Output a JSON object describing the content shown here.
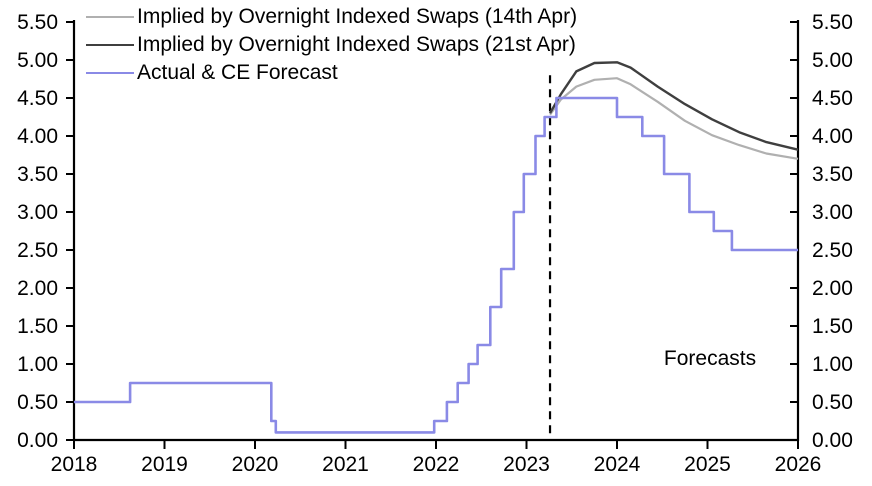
{
  "legend": {
    "items": [
      {
        "label": "Implied by Overnight Indexed Swaps (14th Apr)",
        "color": "#b0b0b0"
      },
      {
        "label": "Implied by Overnight Indexed Swaps (21st Apr)",
        "color": "#3f3f3f"
      },
      {
        "label": "Actual & CE Forecast",
        "color": "#8a8ae6"
      }
    ]
  },
  "annotations": {
    "forecasts_label": "Forecasts"
  },
  "chart_data": {
    "type": "line",
    "title": "",
    "xlabel": "",
    "ylabel": "",
    "xlim": [
      2018,
      2026
    ],
    "ylim": [
      0.0,
      5.5
    ],
    "grid": false,
    "legend_position": "top-left",
    "axis_color": "#000000",
    "x_ticks": [
      2018,
      2019,
      2020,
      2021,
      2022,
      2023,
      2024,
      2025,
      2026
    ],
    "x_tick_labels": [
      "2018",
      "2019",
      "2020",
      "2021",
      "2022",
      "2023",
      "2024",
      "2025",
      "2026"
    ],
    "y_ticks": [
      0.0,
      0.5,
      1.0,
      1.5,
      2.0,
      2.5,
      3.0,
      3.5,
      4.0,
      4.5,
      5.0,
      5.5
    ],
    "y_tick_labels": [
      "0.00",
      "0.50",
      "1.00",
      "1.50",
      "2.00",
      "2.50",
      "3.00",
      "3.50",
      "4.00",
      "4.50",
      "5.00",
      "5.50"
    ],
    "y_axis_sides": [
      "left",
      "right"
    ],
    "forecast_divider": {
      "style": "dashed-vertical",
      "x": 2023.26,
      "y_top": 4.8,
      "y_bottom": 0.0
    },
    "series": [
      {
        "name": "Implied by Overnight Indexed Swaps (14th Apr)",
        "color": "#b0b0b0",
        "width": 2.2,
        "mode": "line",
        "points": [
          [
            2023.26,
            4.28
          ],
          [
            2023.38,
            4.48
          ],
          [
            2023.55,
            4.65
          ],
          [
            2023.75,
            4.74
          ],
          [
            2024.0,
            4.76
          ],
          [
            2024.15,
            4.68
          ],
          [
            2024.45,
            4.45
          ],
          [
            2024.75,
            4.2
          ],
          [
            2025.05,
            4.01
          ],
          [
            2025.35,
            3.88
          ],
          [
            2025.65,
            3.77
          ],
          [
            2026.0,
            3.7
          ]
        ]
      },
      {
        "name": "Implied by Overnight Indexed Swaps (21st Apr)",
        "color": "#3f3f3f",
        "width": 2.4,
        "mode": "line",
        "points": [
          [
            2023.26,
            4.3
          ],
          [
            2023.38,
            4.55
          ],
          [
            2023.55,
            4.85
          ],
          [
            2023.75,
            4.96
          ],
          [
            2024.0,
            4.97
          ],
          [
            2024.15,
            4.9
          ],
          [
            2024.45,
            4.65
          ],
          [
            2024.75,
            4.42
          ],
          [
            2025.05,
            4.22
          ],
          [
            2025.35,
            4.05
          ],
          [
            2025.65,
            3.92
          ],
          [
            2026.0,
            3.82
          ]
        ]
      },
      {
        "name": "Actual & CE Forecast",
        "color": "#8a8ae6",
        "width": 2.6,
        "mode": "step",
        "end_x": 2026,
        "points": [
          [
            2018.0,
            0.5
          ],
          [
            2018.62,
            0.75
          ],
          [
            2020.18,
            0.25
          ],
          [
            2020.23,
            0.1
          ],
          [
            2021.98,
            0.25
          ],
          [
            2022.12,
            0.5
          ],
          [
            2022.24,
            0.75
          ],
          [
            2022.36,
            1.0
          ],
          [
            2022.46,
            1.25
          ],
          [
            2022.6,
            1.75
          ],
          [
            2022.72,
            2.25
          ],
          [
            2022.86,
            3.0
          ],
          [
            2022.97,
            3.5
          ],
          [
            2023.1,
            4.0
          ],
          [
            2023.2,
            4.25
          ],
          [
            2023.33,
            4.5
          ],
          [
            2024.0,
            4.25
          ],
          [
            2024.28,
            4.0
          ],
          [
            2024.52,
            3.5
          ],
          [
            2024.8,
            3.0
          ],
          [
            2025.07,
            2.75
          ],
          [
            2025.27,
            2.5
          ]
        ]
      }
    ]
  }
}
